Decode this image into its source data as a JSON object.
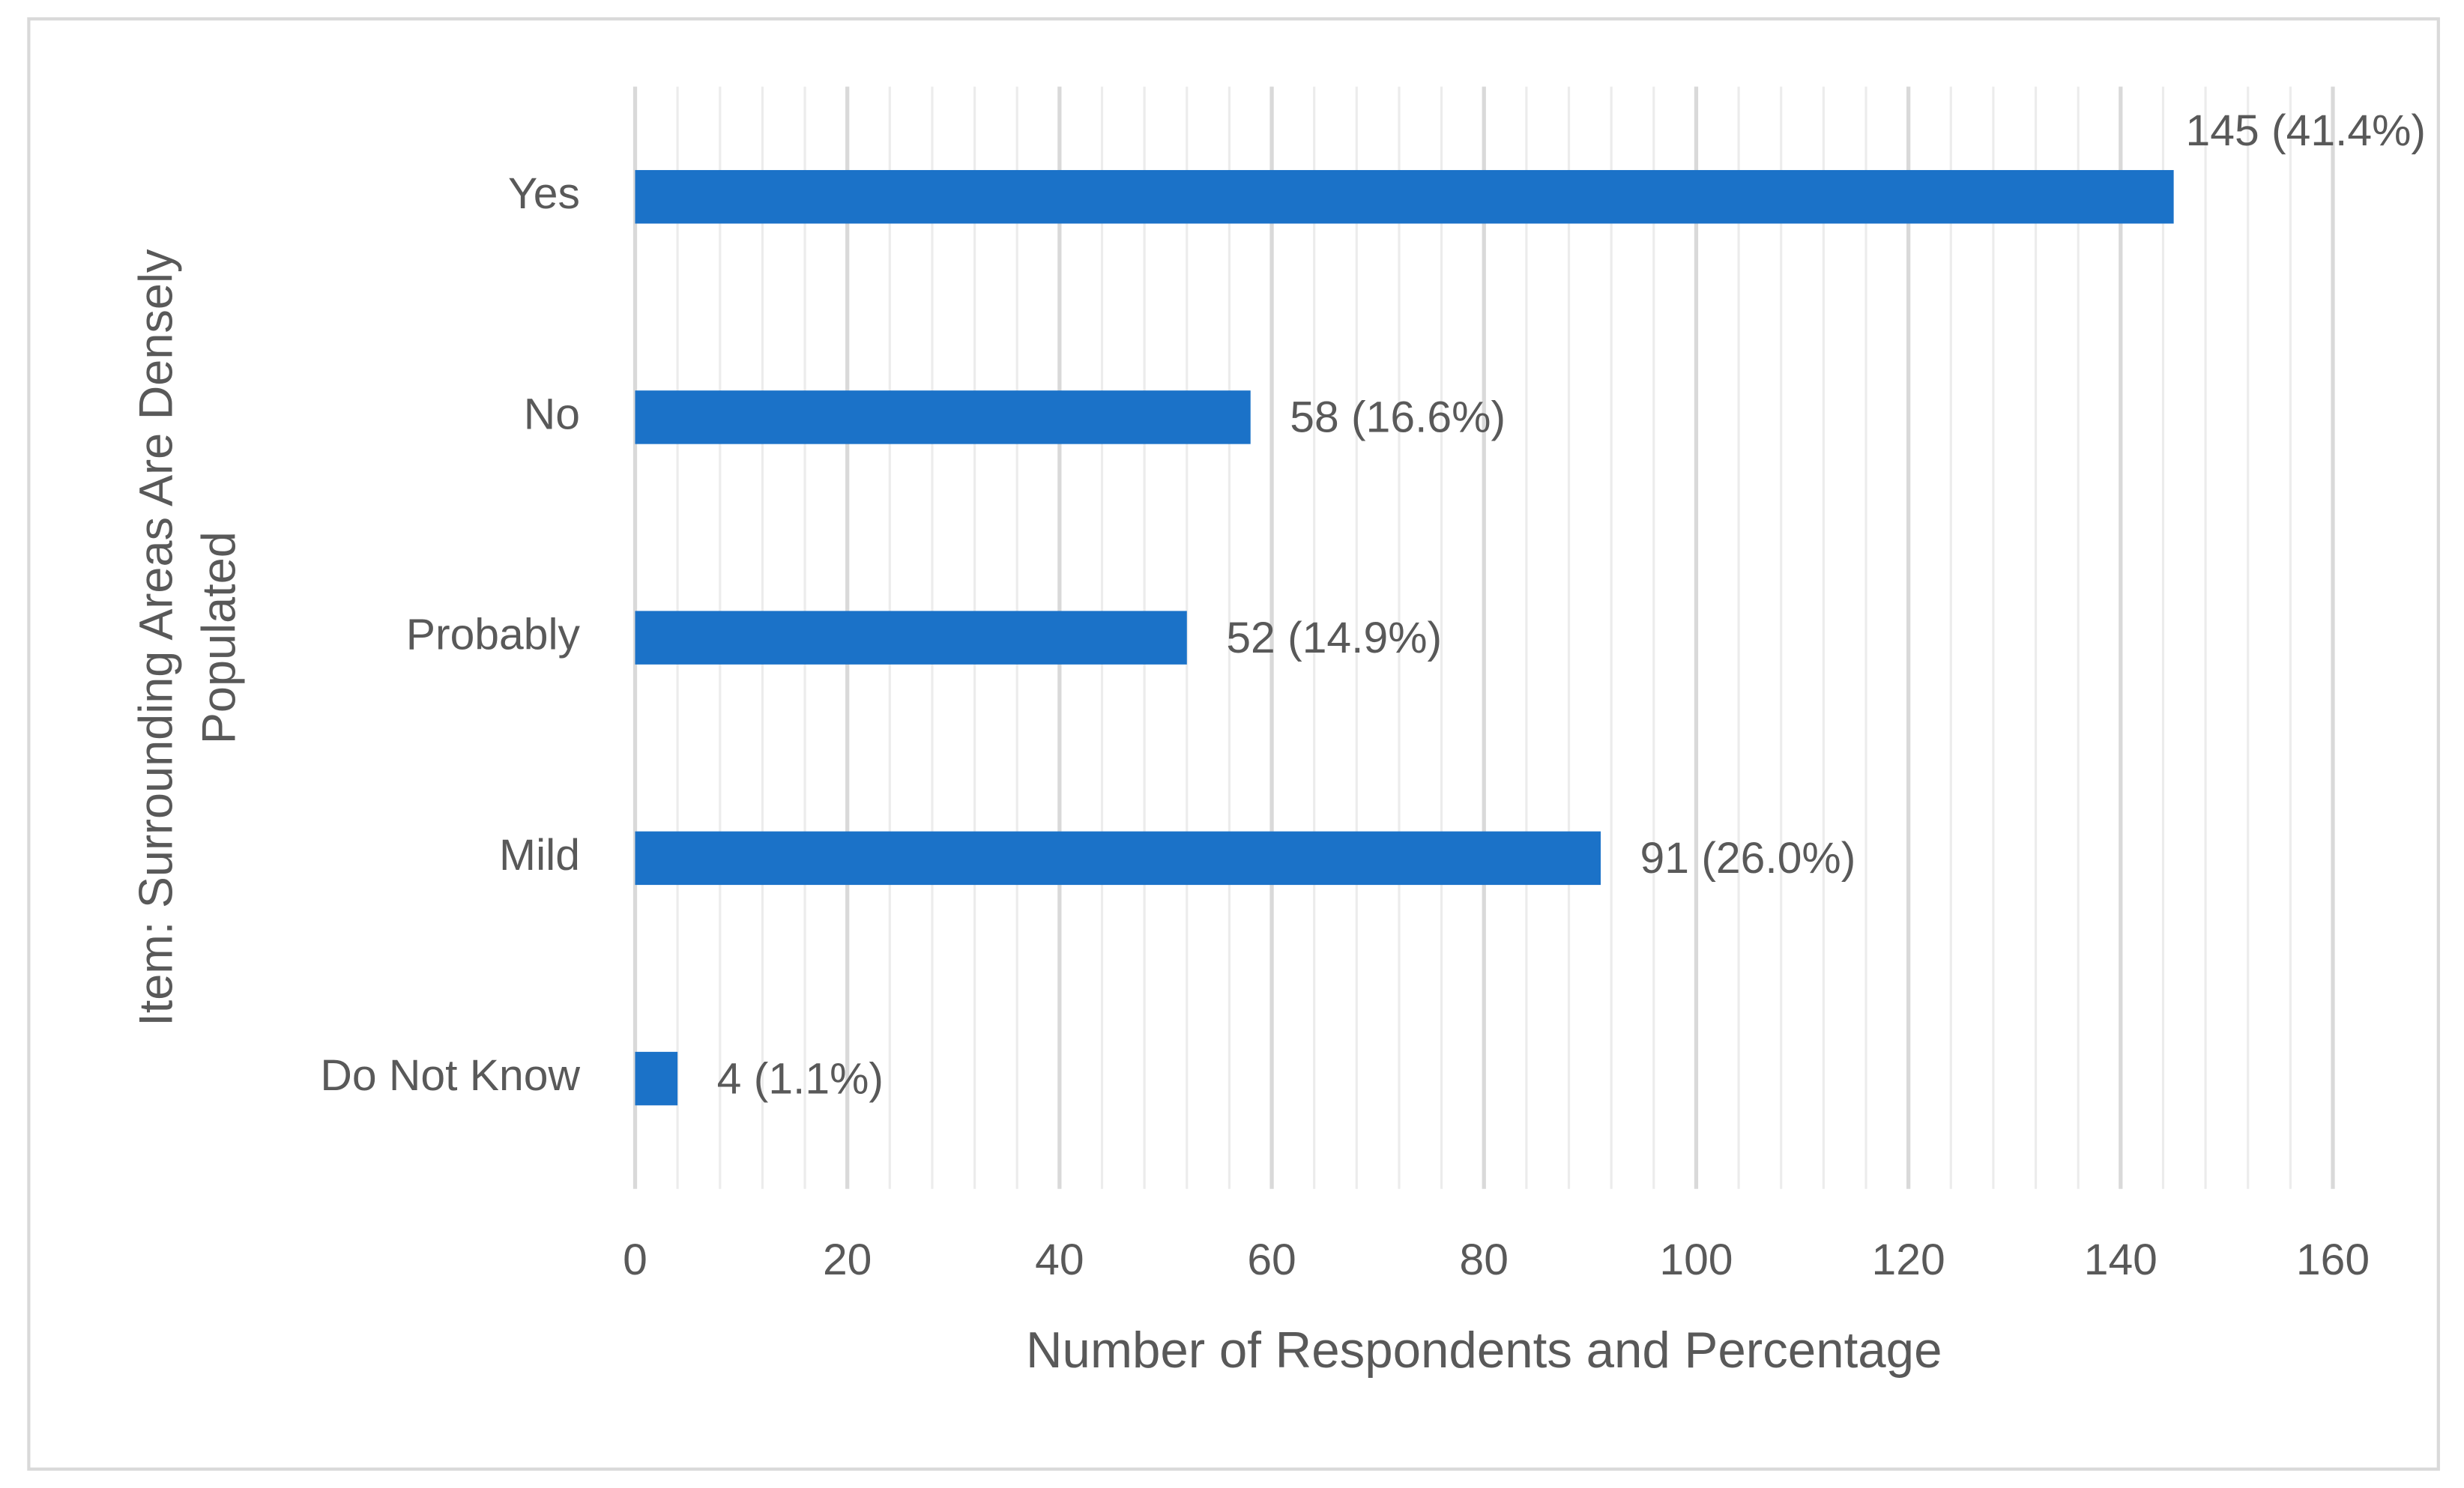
{
  "chart_data": {
    "type": "hbar",
    "categories": [
      "Yes",
      "No",
      "Probably",
      "Mild",
      "Do Not Know"
    ],
    "values": [
      145,
      58,
      52,
      91,
      4
    ],
    "value_labels": [
      "145 (41.4%)",
      "58 (16.6%)",
      "52 (14.9%)",
      "91 (26.0%)",
      "4 (1.1%)"
    ],
    "color": "#1b72c8",
    "x_label": "Number of Respondents and Percentage",
    "y_label": "Item: Surrounding Areas Are Densely Populated",
    "xlim": [
      0,
      160
    ],
    "xticks": [
      0,
      20,
      40,
      60,
      80,
      100,
      120,
      140,
      160
    ],
    "minor_xticks": [
      4,
      8,
      12,
      16,
      24,
      28,
      32,
      36,
      44,
      48,
      52,
      56,
      64,
      68,
      72,
      76,
      84,
      88,
      92,
      96,
      104,
      108,
      112,
      116,
      124,
      128,
      132,
      136,
      144,
      148,
      152,
      156
    ],
    "grid": true
  }
}
